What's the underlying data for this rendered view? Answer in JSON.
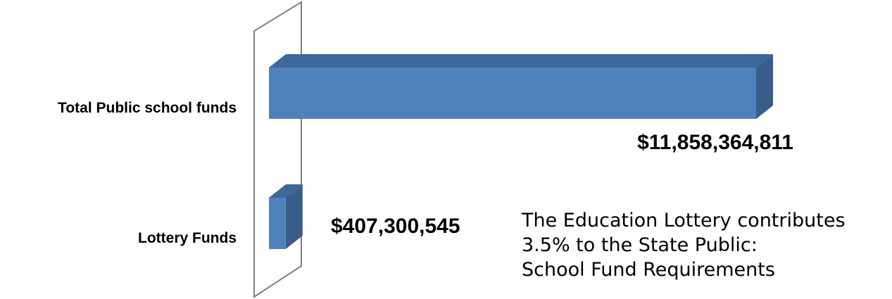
{
  "chart_data": {
    "type": "bar",
    "orientation": "horizontal",
    "style": "3d",
    "categories": [
      "Total Public school funds",
      "Lottery Funds"
    ],
    "values": [
      11858364811,
      407300545
    ],
    "data_labels": [
      "$11,858,364,811",
      "$407,300,545"
    ],
    "xlim": [
      0,
      11858364811
    ],
    "grid": false,
    "legend": "none",
    "colors": {
      "bar_front": "#4f81bd",
      "bar_top": "#3e679a",
      "bar_side": "#385d8a",
      "wall_stroke": "#7f7f7f"
    }
  },
  "annotation": {
    "lines": [
      "The Education Lottery contributes",
      "3.5% to the State Public:",
      "School Fund Requirements"
    ]
  }
}
